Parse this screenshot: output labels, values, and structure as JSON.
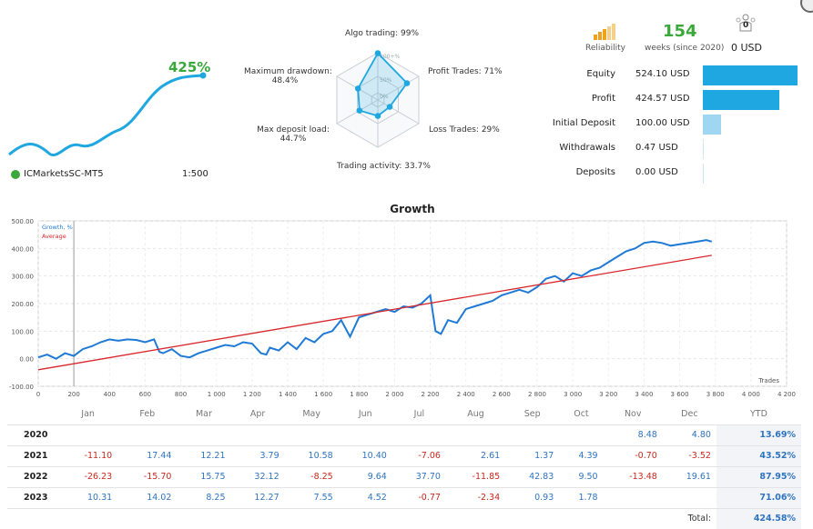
{
  "account": {
    "gain": "425%",
    "broker": "ICMarketsSC-MT5",
    "leverage": "1:500"
  },
  "radar": {
    "algo_trading": "Algo trading: 99%",
    "profit_trades": "Profit Trades: 71%",
    "loss_trades": "Loss Trades: 29%",
    "trading_activity": "Trading activity: 33.7%",
    "max_deposit_load_label": "Max deposit load:",
    "max_deposit_load_value": "44.7%",
    "max_drawdown_label": "Maximum drawdown:",
    "max_drawdown_value": "48.4%",
    "ring_labels": [
      "100+%",
      "50%",
      "0%"
    ],
    "values": {
      "algo_trading": 0.99,
      "profit_trades": 0.71,
      "loss_trades": 0.29,
      "trading_activity": 0.337,
      "max_deposit_load": 0.447,
      "max_drawdown": 0.484
    }
  },
  "header_stats": {
    "reliability_label": "Reliability",
    "weeks_value": "154",
    "weeks_label": "weeks (since 2020)",
    "subscribers_count": "0",
    "subscribers_value": "0 USD"
  },
  "stats": [
    {
      "label": "Equity",
      "value": "524.10 USD",
      "fraction": 1.0,
      "color": "#1ea7e1"
    },
    {
      "label": "Profit",
      "value": "424.57 USD",
      "fraction": 0.81,
      "color": "#1ea7e1"
    },
    {
      "label": "Initial Deposit",
      "value": "100.00 USD",
      "fraction": 0.19,
      "color": "#9fd7f3"
    },
    {
      "label": "Withdrawals",
      "value": "0.47 USD",
      "fraction": 0.0,
      "color": "#9fd7f3"
    },
    {
      "label": "Deposits",
      "value": "0.00 USD",
      "fraction": 0.0,
      "color": "#9fd7f3"
    }
  ],
  "chart_data": {
    "type": "line",
    "title": "Growth",
    "xlabel": "Trades",
    "ylabel": "",
    "xlim": [
      0,
      4200
    ],
    "ylim": [
      -100,
      500
    ],
    "x_ticks": [
      "0",
      "200",
      "400",
      "600",
      "800",
      "1 000",
      "1 200",
      "1 400",
      "1 600",
      "1 800",
      "2 000",
      "2 200",
      "2 400",
      "2 600",
      "2 800",
      "3 000",
      "3 200",
      "3 400",
      "3 600",
      "3 800",
      "4 000",
      "4 200"
    ],
    "y_ticks": [
      "-100.00",
      "0.00",
      "100.00",
      "200.00",
      "300.00",
      "400.00",
      "500.00"
    ],
    "legend": [
      "Growth, %",
      "Average"
    ],
    "series": [
      {
        "name": "Growth, %",
        "color": "#1f7ad6",
        "x": [
          0,
          50,
          100,
          150,
          200,
          250,
          300,
          350,
          400,
          450,
          500,
          550,
          600,
          650,
          680,
          700,
          750,
          800,
          850,
          900,
          950,
          1000,
          1050,
          1100,
          1150,
          1200,
          1250,
          1280,
          1300,
          1350,
          1400,
          1450,
          1500,
          1550,
          1600,
          1650,
          1700,
          1750,
          1800,
          1850,
          1900,
          1950,
          2000,
          2050,
          2100,
          2150,
          2200,
          2230,
          2260,
          2300,
          2350,
          2400,
          2450,
          2500,
          2550,
          2600,
          2650,
          2700,
          2750,
          2800,
          2850,
          2900,
          2950,
          3000,
          3050,
          3100,
          3150,
          3200,
          3250,
          3300,
          3350,
          3400,
          3450,
          3500,
          3550,
          3600,
          3650,
          3700,
          3750,
          3780
        ],
        "y": [
          5,
          15,
          0,
          20,
          10,
          35,
          45,
          60,
          70,
          65,
          70,
          68,
          60,
          70,
          25,
          20,
          35,
          10,
          5,
          20,
          30,
          40,
          50,
          45,
          60,
          55,
          20,
          15,
          40,
          30,
          60,
          35,
          75,
          60,
          90,
          100,
          140,
          80,
          150,
          160,
          170,
          180,
          170,
          190,
          185,
          200,
          230,
          100,
          90,
          140,
          130,
          180,
          190,
          200,
          210,
          230,
          240,
          250,
          240,
          260,
          290,
          300,
          280,
          310,
          300,
          320,
          330,
          350,
          370,
          390,
          400,
          420,
          425,
          420,
          410,
          415,
          420,
          425,
          430,
          425
        ]
      },
      {
        "name": "Average",
        "color": "#d9262b",
        "x": [
          0,
          3780
        ],
        "y": [
          -40,
          375
        ]
      }
    ]
  },
  "monthly": {
    "headers": [
      "Jan",
      "Feb",
      "Mar",
      "Apr",
      "May",
      "Jun",
      "Jul",
      "Aug",
      "Sep",
      "Oct",
      "Nov",
      "Dec",
      "YTD"
    ],
    "rows": [
      {
        "year": "2020",
        "values": [
          "",
          "",
          "",
          "",
          "",
          "",
          "",
          "",
          "",
          "",
          "8.48",
          "4.80"
        ],
        "ytd": "13.69%"
      },
      {
        "year": "2021",
        "values": [
          "-11.10",
          "17.44",
          "12.21",
          "3.79",
          "10.58",
          "10.40",
          "-7.06",
          "2.61",
          "1.37",
          "4.39",
          "-0.70",
          "-3.52"
        ],
        "ytd": "43.52%"
      },
      {
        "year": "2022",
        "values": [
          "-26.23",
          "-15.70",
          "15.75",
          "32.12",
          "-8.25",
          "9.64",
          "37.70",
          "-11.85",
          "42.83",
          "9.50",
          "-13.48",
          "19.61"
        ],
        "ytd": "87.95%"
      },
      {
        "year": "2023",
        "values": [
          "10.31",
          "14.02",
          "8.25",
          "12.27",
          "7.55",
          "4.52",
          "-0.77",
          "-2.34",
          "0.93",
          "1.78",
          "",
          ""
        ],
        "ytd": "71.06%"
      }
    ],
    "total_label": "Total:",
    "total_value": "424.58%"
  }
}
